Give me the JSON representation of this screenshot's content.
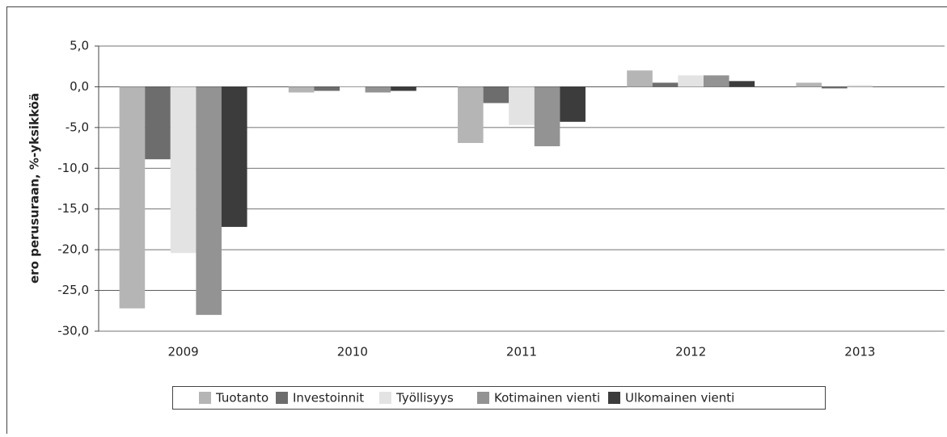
{
  "chart_data": {
    "type": "bar",
    "y_label": "ero perusuraan, %-yksikköä",
    "categories": [
      "2009",
      "2010",
      "2011",
      "2012",
      "2013"
    ],
    "series": [
      {
        "name": "Tuotanto",
        "color": "#b5b5b5",
        "values": [
          -27.2,
          -0.7,
          -6.9,
          2.0,
          0.5
        ]
      },
      {
        "name": "Investoinnit",
        "color": "#6d6d6d",
        "values": [
          -8.9,
          -0.5,
          -2.0,
          0.5,
          -0.2
        ]
      },
      {
        "name": "Työllisyys",
        "color": "#e3e3e4",
        "values": [
          -20.4,
          0.1,
          -4.7,
          1.4,
          0.2
        ]
      },
      {
        "name": "Kotimainen vienti",
        "color": "#939393",
        "values": [
          -28.0,
          -0.7,
          -7.3,
          1.4,
          0.0
        ]
      },
      {
        "name": "Ulkomainen vienti",
        "color": "#3c3c3c",
        "values": [
          -17.2,
          -0.5,
          -4.3,
          0.7,
          0.0
        ]
      }
    ],
    "ylim": [
      -30,
      5
    ],
    "yticks": [
      {
        "value": -30,
        "label": "-30,0"
      },
      {
        "value": -25,
        "label": "-25,0"
      },
      {
        "value": -20,
        "label": "-20,0"
      },
      {
        "value": -15,
        "label": "-15,0"
      },
      {
        "value": -10,
        "label": "-10,0"
      },
      {
        "value": -5,
        "label": "-5,0"
      },
      {
        "value": 0,
        "label": "0,0"
      },
      {
        "value": 5,
        "label": "5,0"
      }
    ],
    "grid": true,
    "legend": "bottom"
  }
}
